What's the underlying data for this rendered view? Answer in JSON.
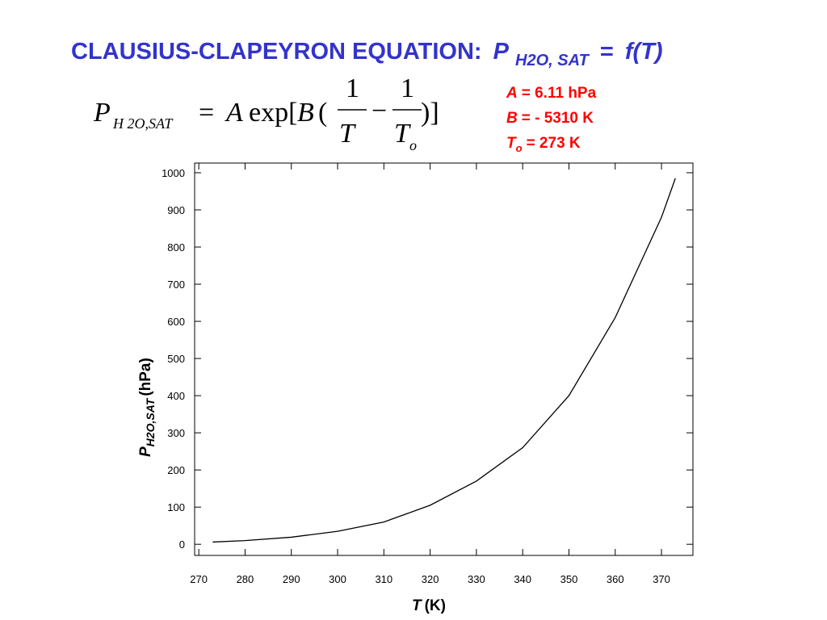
{
  "title": {
    "text": "CLAUSIUS-CLAPEYRON EQUATION:",
    "symbol": "P",
    "subscript": "H2O, SAT",
    "equals": "=",
    "function": "f(T)"
  },
  "equation": {
    "symbol": "P",
    "subscript": "H 2O,SAT",
    "equals": "=",
    "A": "A",
    "exp": "exp[",
    "B": "B",
    "open": "(",
    "num1": "1",
    "den1": "T",
    "minus": "−",
    "num2": "1",
    "den2": "T",
    "den2_sub": "o",
    "close": ")]"
  },
  "parameters": [
    {
      "symbol": "A",
      "text": "= 6.11 hPa"
    },
    {
      "symbol": "B",
      "text": "= - 5310 K"
    },
    {
      "symbol": "T",
      "subscript": "o",
      "text": "= 273 K"
    }
  ],
  "chart_data": {
    "type": "line",
    "xlabel": [
      "T",
      "(K)"
    ],
    "ylabel": [
      "P",
      "H2O,SAT",
      "(hPa)"
    ],
    "x": [
      273,
      280,
      290,
      300,
      310,
      320,
      330,
      340,
      350,
      360,
      370,
      373
    ],
    "values": [
      6,
      10,
      19,
      35,
      60,
      105,
      170,
      260,
      400,
      610,
      880,
      985
    ],
    "color": "#000000",
    "xlim": [
      269.1,
      376.8
    ],
    "ylim": [
      -30,
      1026
    ],
    "xticks": [
      270,
      280,
      290,
      300,
      310,
      320,
      330,
      340,
      350,
      360,
      370
    ],
    "yticks": [
      0,
      100,
      200,
      300,
      400,
      500,
      600,
      700,
      800,
      900,
      1000
    ]
  }
}
